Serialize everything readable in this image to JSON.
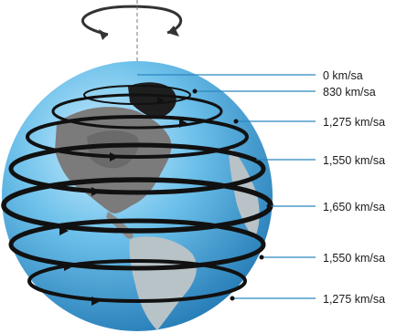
{
  "colors": {
    "ocean": "#5fb8e3",
    "ocean_dark": "#2b86bf",
    "land": "#7f7f7f",
    "land_dark": "#5a5a5a",
    "ring": "#111111",
    "leader": "#2b86bf"
  },
  "icons": {
    "rotation": "curved-rotation-arrow-icon"
  },
  "speed_labels": [
    "0 km/sa",
    "830 km/sa",
    "1,275 km/sa",
    "1,550 km/sa",
    "1,650 km/sa",
    "1,550 km/sa",
    "1,275 km/sa"
  ]
}
